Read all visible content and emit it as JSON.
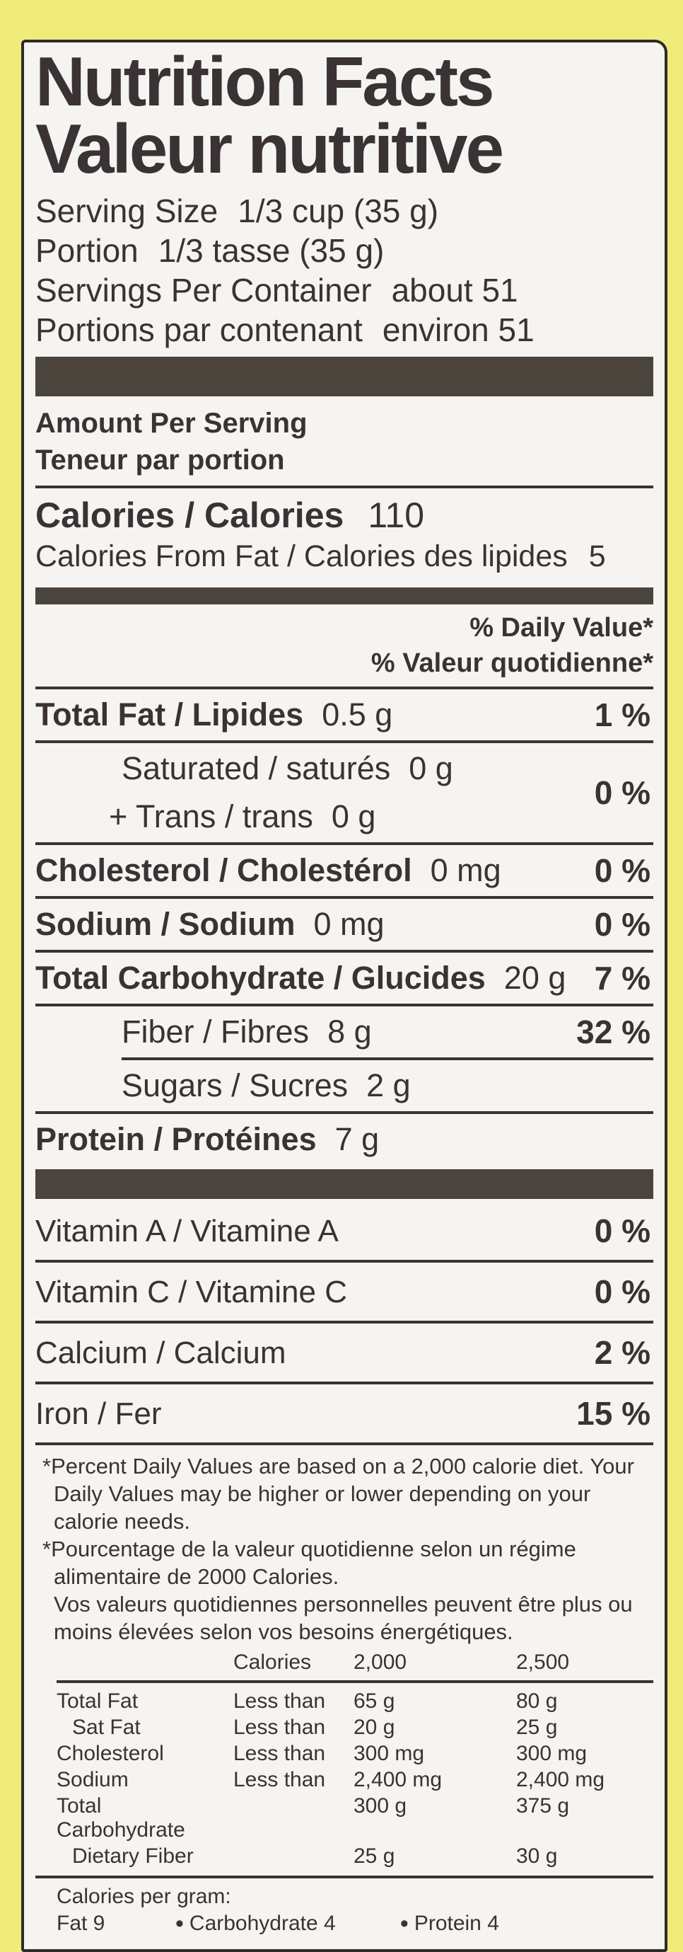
{
  "colors": {
    "page-bg": "#efec7c",
    "label-bg": "#f6f4f0",
    "ink": "#3a3234",
    "bar": "#4a443c",
    "border": "#2f2b28"
  },
  "header": {
    "title_en": "Nutrition Facts",
    "title_fr": "Valeur nutritive"
  },
  "serving": {
    "rows": [
      {
        "label": "Serving Size",
        "value": "1/3 cup (35 g)"
      },
      {
        "label": "Portion",
        "value": "1/3 tasse (35 g)"
      },
      {
        "label": "Servings Per Container",
        "value": "about 51"
      },
      {
        "label": "Portions par contenant",
        "value": "environ 51"
      }
    ]
  },
  "amount_per_serving": {
    "en": "Amount Per Serving",
    "fr": "Teneur par portion"
  },
  "calories": {
    "label": "Calories / Calories",
    "value": "110"
  },
  "calories_from_fat": {
    "label": "Calories From Fat / Calories des lipides",
    "value": "5"
  },
  "daily_value": {
    "en": "% Daily Value*",
    "fr": "% Valeur quotidienne*"
  },
  "nutrients": [
    {
      "name": "Total Fat / Lipides",
      "amount": "0.5 g",
      "dv": "1 %"
    },
    {
      "name": "Saturated / saturés",
      "amount": "0 g"
    },
    {
      "name": "+ Trans / trans",
      "amount": "0 g",
      "dv": "0 %"
    },
    {
      "name": "Cholesterol / Cholestérol",
      "amount": "0 mg",
      "dv": "0 %"
    },
    {
      "name": "Sodium / Sodium",
      "amount": "0 mg",
      "dv": "0 %"
    },
    {
      "name": "Total Carbohydrate / Glucides",
      "amount": "20 g",
      "dv": "7 %"
    },
    {
      "name": "Fiber / Fibres",
      "amount": "8 g",
      "dv": "32 %"
    },
    {
      "name": "Sugars / Sucres",
      "amount": "2 g"
    },
    {
      "name": "Protein / Protéines",
      "amount": "7 g"
    }
  ],
  "vitamins": [
    {
      "name": "Vitamin A / Vitamine A",
      "dv": "0 %"
    },
    {
      "name": "Vitamin C / Vitamine C",
      "dv": "0 %"
    },
    {
      "name": "Calcium / Calcium",
      "dv": "2 %"
    },
    {
      "name": "Iron / Fer",
      "dv": "15 %"
    }
  ],
  "footnotes": {
    "en": "*Percent Daily Values are based on a 2,000 calorie diet. Your Daily Values may be higher or lower depending on your calorie needs.",
    "fr1": "*Pourcentage de la valeur quotidienne selon un régime alimentaire de 2000 Calories.",
    "fr2": "Vos valeurs quotidiennes personnelles peuvent être plus ou moins élevées selon vos besoins énergétiques."
  },
  "ref_table": {
    "header": {
      "calories": "Calories",
      "c2000": "2,000",
      "c2500": "2,500"
    },
    "rows": [
      {
        "name": "Total Fat",
        "qualifier": "Less than",
        "v2000": "65 g",
        "v2500": "80 g"
      },
      {
        "name": "Sat Fat",
        "qualifier": "Less than",
        "v2000": "20 g",
        "v2500": "25 g"
      },
      {
        "name": "Cholesterol",
        "qualifier": "Less than",
        "v2000": "300 mg",
        "v2500": "300 mg"
      },
      {
        "name": "Sodium",
        "qualifier": "Less than",
        "v2000": "2,400 mg",
        "v2500": "2,400 mg"
      },
      {
        "name": "Total Carbohydrate",
        "qualifier": "",
        "v2000": "300 g",
        "v2500": "375 g"
      },
      {
        "name": "Dietary Fiber",
        "qualifier": "",
        "v2000": "25 g",
        "v2500": "30 g"
      }
    ]
  },
  "calories_per_gram": {
    "label": "Calories per gram:",
    "items": [
      "Fat 9",
      "Carbohydrate 4",
      "Protein 4"
    ],
    "separator": "•"
  }
}
